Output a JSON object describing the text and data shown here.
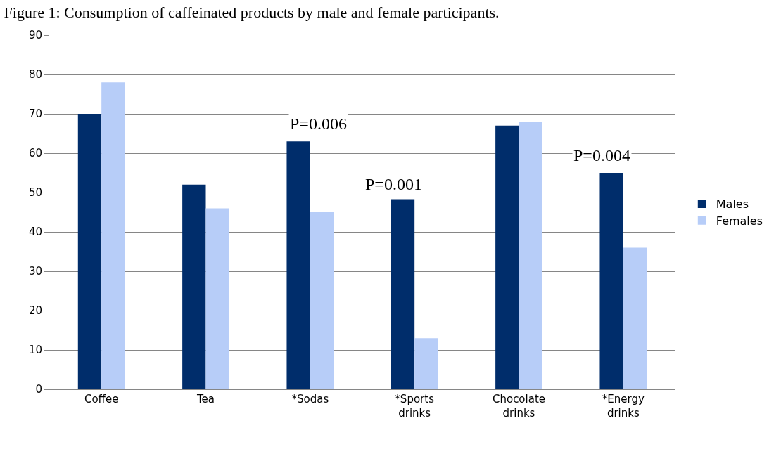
{
  "chart_data": {
    "type": "bar",
    "title": "Figure 1: Consumption of caffeinated products by male and female participants.",
    "categories": [
      "Coffee",
      "Tea",
      "*Sodas",
      "*Sports drinks",
      "Chocolate drinks",
      "*Energy drinks"
    ],
    "series": [
      {
        "name": "Males",
        "color": "#002d6b",
        "values": [
          70,
          52,
          63,
          48.3,
          67,
          55
        ]
      },
      {
        "name": "Females",
        "color": "#b7cdf8",
        "values": [
          78,
          46,
          45,
          13,
          68,
          36
        ]
      }
    ],
    "ylim": [
      0,
      90
    ],
    "yticks": [
      0,
      10,
      20,
      30,
      40,
      50,
      60,
      70,
      80,
      90
    ],
    "grid": "y",
    "legend": "right",
    "annotations": [
      "P=0.006",
      "P=0.001",
      "P=0.004"
    ]
  }
}
